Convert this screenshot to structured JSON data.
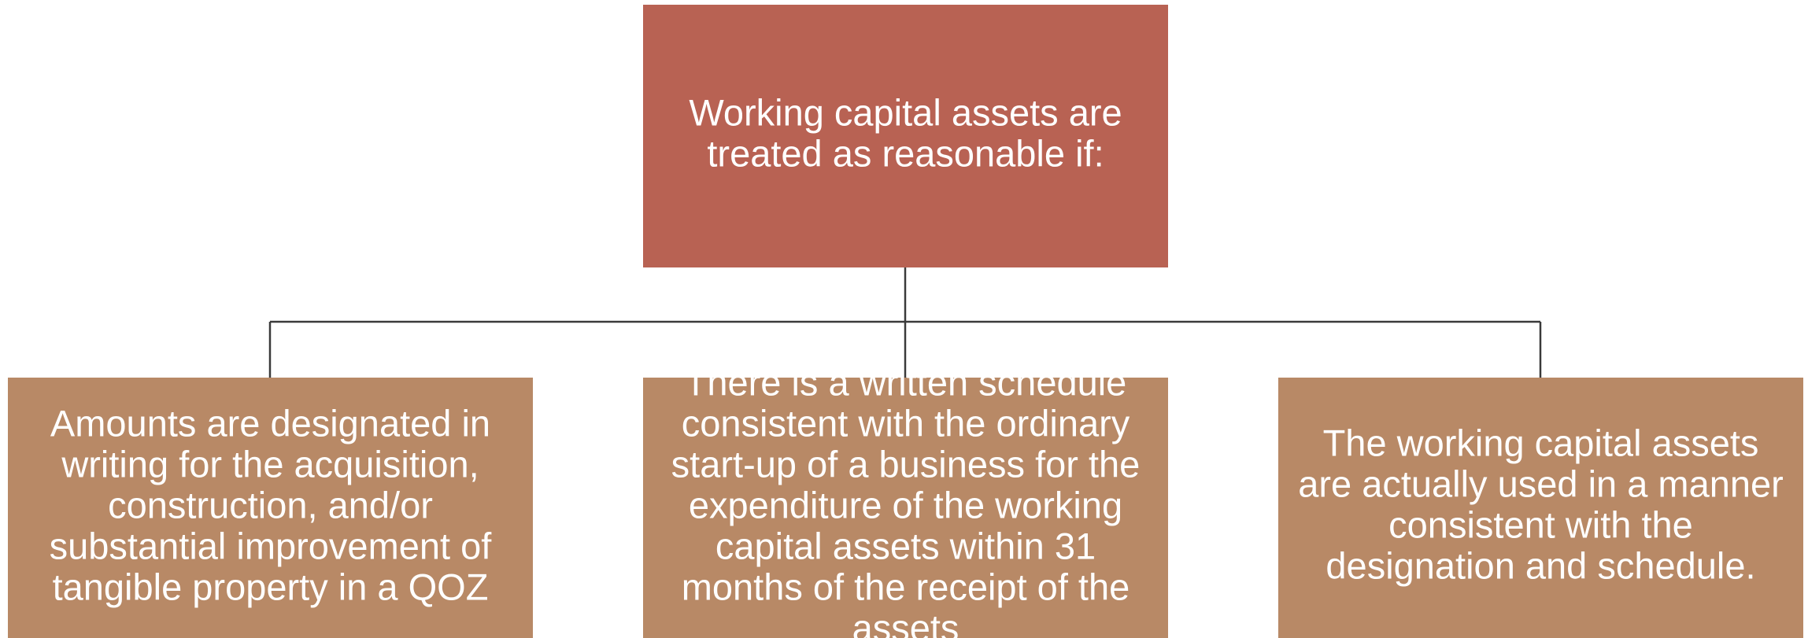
{
  "nodes": [
    {
      "lines": [
        "Working capital assets are",
        "treated as reasonable if:"
      ]
    },
    {
      "lines": [
        "Amounts are designated in",
        "writing for the acquisition,",
        "construction, and/or",
        "substantial improvement of",
        "tangible property in a QOZ"
      ]
    },
    {
      "lines": [
        "There is a written schedule",
        "consistent with the ordinary",
        "start-up of a business for the",
        "expenditure of the working",
        "capital assets within 31",
        "months of the receipt of the",
        "assets"
      ]
    },
    {
      "lines": [
        "The working capital assets",
        "are actually used in a manner",
        "consistent with the",
        "designation and schedule."
      ]
    }
  ]
}
